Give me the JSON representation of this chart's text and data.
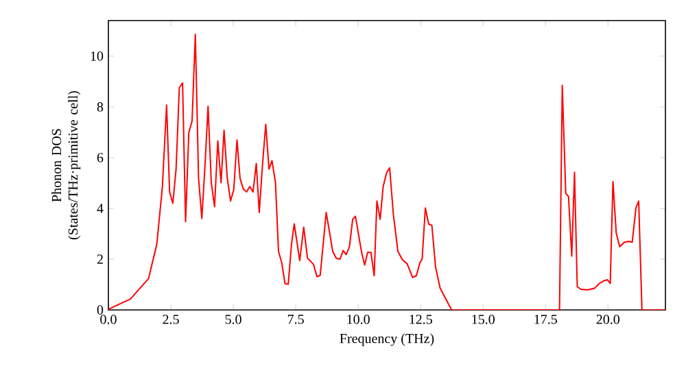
{
  "chart_data": {
    "type": "line",
    "xlabel": "Frequency (THz)",
    "ylabel": "Phonon DOS (States/THz·primitive cell)",
    "x": [
      0,
      0.05,
      0.88,
      1.61,
      1.94,
      2.16,
      2.33,
      2.45,
      2.58,
      2.71,
      2.84,
      2.97,
      3.09,
      3.22,
      3.35,
      3.48,
      3.61,
      3.74,
      3.86,
      3.99,
      4.12,
      4.25,
      4.38,
      4.51,
      4.63,
      4.76,
      4.89,
      5.02,
      5.15,
      5.27,
      5.4,
      5.53,
      5.66,
      5.79,
      5.92,
      6.04,
      6.17,
      6.3,
      6.43,
      6.55,
      6.69,
      6.81,
      6.94,
      7.07,
      7.2,
      7.33,
      7.44,
      7.66,
      7.82,
      7.97,
      8.21,
      8.35,
      8.48,
      8.72,
      8.98,
      9.12,
      9.27,
      9.4,
      9.52,
      9.65,
      9.78,
      9.89,
      10.13,
      10.26,
      10.38,
      10.51,
      10.64,
      10.75,
      10.88,
      11.0,
      11.14,
      11.26,
      11.41,
      11.59,
      11.77,
      11.96,
      12.18,
      12.33,
      12.47,
      12.56,
      12.69,
      12.82,
      12.95,
      13.1,
      13.28,
      13.52,
      13.74,
      18.06,
      18.17,
      18.31,
      18.42,
      18.55,
      18.66,
      18.77,
      18.92,
      19.19,
      19.47,
      19.65,
      19.84,
      19.98,
      20.09,
      20.2,
      20.33,
      20.47,
      20.66,
      20.84,
      20.97,
      21.12,
      21.23,
      21.36,
      22.3
    ],
    "series": [
      {
        "color": "#ff0000",
        "values": [
          0,
          0.05,
          0.43,
          1.24,
          2.6,
          4.83,
          8.07,
          4.65,
          4.2,
          5.55,
          8.76,
          8.94,
          3.48,
          6.99,
          7.44,
          10.86,
          5.19,
          3.6,
          5.55,
          8.02,
          5.01,
          4.07,
          6.66,
          5.01,
          7.08,
          5.19,
          4.29,
          4.74,
          6.69,
          5.19,
          4.77,
          4.65,
          4.86,
          4.65,
          5.77,
          3.84,
          5.73,
          7.31,
          5.55,
          5.88,
          5.01,
          2.31,
          1.86,
          1.04,
          1.01,
          2.58,
          3.39,
          1.95,
          3.26,
          2.04,
          1.8,
          1.31,
          1.37,
          3.84,
          2.31,
          2.04,
          2.0,
          2.34,
          2.18,
          2.49,
          3.57,
          3.69,
          2.31,
          1.77,
          2.27,
          2.27,
          1.35,
          4.29,
          3.57,
          4.86,
          5.41,
          5.6,
          3.75,
          2.31,
          1.98,
          1.82,
          1.28,
          1.35,
          1.86,
          2.0,
          4.02,
          3.39,
          3.33,
          1.68,
          0.86,
          0.41,
          0,
          0,
          8.85,
          4.59,
          4.47,
          2.12,
          5.42,
          0.92,
          0.81,
          0.79,
          0.86,
          1.04,
          1.15,
          1.19,
          1.04,
          5.06,
          3.03,
          2.49,
          2.67,
          2.7,
          2.67,
          4.02,
          4.29,
          0,
          0
        ]
      }
    ],
    "xlim": [
      0,
      22.3
    ],
    "ylim": [
      0,
      11.4
    ],
    "xticks": [
      {
        "value": 0,
        "label": "0.0"
      },
      {
        "value": 2.5,
        "label": "2.5"
      },
      {
        "value": 5,
        "label": "5.0"
      },
      {
        "value": 7.5,
        "label": "7.5"
      },
      {
        "value": 10,
        "label": "10.0"
      },
      {
        "value": 12.5,
        "label": "12.5"
      },
      {
        "value": 15,
        "label": "15.0"
      },
      {
        "value": 17.5,
        "label": "17.5"
      },
      {
        "value": 20,
        "label": "20.0"
      }
    ],
    "yticks": [
      0,
      2,
      4,
      6,
      8,
      10
    ],
    "marker": "none",
    "line_style": "solid"
  }
}
